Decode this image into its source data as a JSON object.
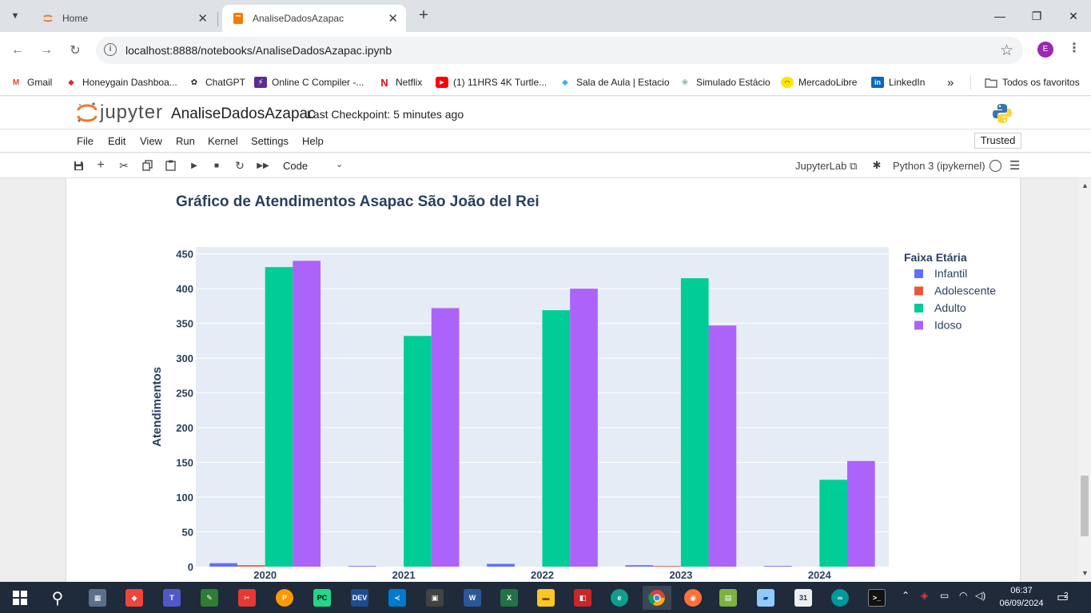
{
  "browser": {
    "tabs": [
      {
        "title": "Home",
        "active": false
      },
      {
        "title": "AnaliseDadosAzapac",
        "active": true
      }
    ],
    "url": "localhost:8888/notebooks/AnaliseDadosAzapac.ipynb",
    "profile_initial": "E",
    "bookmarks": [
      {
        "label": "Gmail",
        "icon": "gmail-icon"
      },
      {
        "label": "Honeygain Dashboa...",
        "icon": "honeygain-icon"
      },
      {
        "label": "ChatGPT",
        "icon": "chatgpt-icon"
      },
      {
        "label": "Online C Compiler -...",
        "icon": "compiler-icon"
      },
      {
        "label": "Netflix",
        "icon": "netflix-icon"
      },
      {
        "label": "(1) 11HRS 4K Turtle...",
        "icon": "youtube-icon"
      },
      {
        "label": "Sala de Aula | Estacio",
        "icon": "estacio-icon"
      },
      {
        "label": "Simulado Estácio",
        "icon": "simulado-icon"
      },
      {
        "label": "MercadoLibre",
        "icon": "mercadolibre-icon"
      },
      {
        "label": "LinkedIn",
        "icon": "linkedin-icon"
      }
    ],
    "bookmarks_overflow": "»",
    "all_bookmarks": "Todos os favoritos"
  },
  "jupyter": {
    "logo_text": "jupyter",
    "notebook_name": "AnaliseDadosAzapac",
    "checkpoint": "Last Checkpoint: 5 minutes ago",
    "menu": [
      "File",
      "Edit",
      "View",
      "Run",
      "Kernel",
      "Settings",
      "Help"
    ],
    "trusted": "Trusted",
    "cell_type": "Code",
    "jupyterlab_link": "JupyterLab",
    "kernel_name": "Python 3 (ipykernel)"
  },
  "chart_data": {
    "type": "bar",
    "title": "Gráfico de Atendimentos Asapac São João del Rei",
    "xlabel": "",
    "ylabel": "Atendimentos",
    "categories": [
      "2020",
      "2021",
      "2022",
      "2023",
      "2024"
    ],
    "legend_title": "Faixa Etária",
    "legend_position": "right",
    "ylim": [
      0,
      460
    ],
    "yticks": [
      0,
      50,
      100,
      150,
      200,
      250,
      300,
      350,
      400,
      450
    ],
    "grid": true,
    "series": [
      {
        "name": "Infantil",
        "color": "#636efa",
        "values": [
          5,
          1,
          4,
          2,
          1
        ]
      },
      {
        "name": "Adolescente",
        "color": "#ef553b",
        "values": [
          2,
          0,
          0,
          1,
          0
        ]
      },
      {
        "name": "Adulto",
        "color": "#00cc96",
        "values": [
          431,
          332,
          369,
          415,
          125
        ]
      },
      {
        "name": "Idoso",
        "color": "#ab63fa",
        "values": [
          440,
          372,
          400,
          347,
          152
        ]
      }
    ]
  },
  "taskbar": {
    "time": "06:37",
    "date": "06/09/2024",
    "notifications": "2"
  }
}
